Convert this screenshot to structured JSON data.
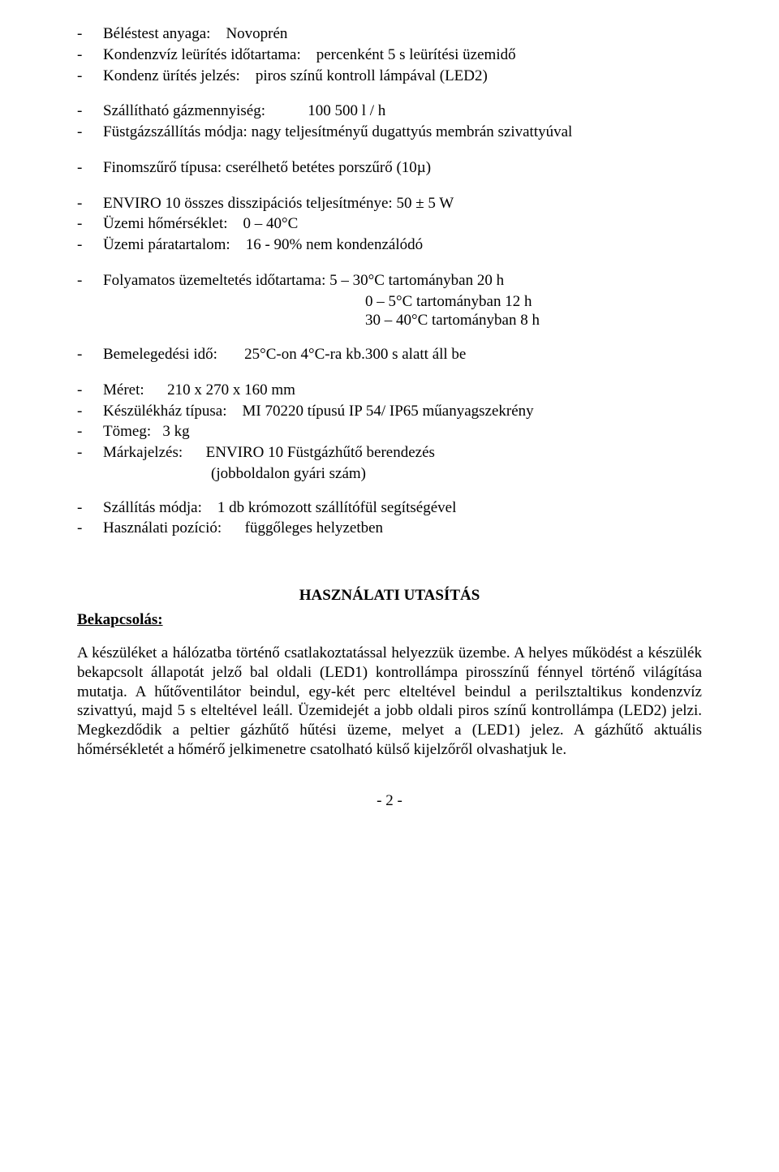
{
  "specs": {
    "group1": [
      {
        "label": "Béléstest anyaga:",
        "value": "Novoprén"
      },
      {
        "label": "Kondenzvíz leürítés időtartama:",
        "value": "percenként 5 s leürítési üzemidő"
      },
      {
        "label": "Kondenz ürítés jelzés:",
        "value": "piros színű kontroll lámpával (LED2)"
      }
    ],
    "group2": [
      {
        "label": "Szállítható gázmennyiség:",
        "value": "100 500 l / h"
      },
      {
        "label": "Füstgázszállítás módja:",
        "value": "nagy teljesítményű dugattyús membrán szivattyúval"
      }
    ],
    "group3": [
      {
        "label": "Finomszűrő típusa:",
        "value": "cserélhető betétes porszűrő (10µ)"
      }
    ],
    "group4": [
      {
        "label": "ENVIRO 10 összes disszipációs teljesítménye:",
        "value": "50 ± 5 W"
      },
      {
        "label": "Üzemi hőmérséklet:",
        "value": "0 – 40°C"
      },
      {
        "label": "Üzemi páratartalom:",
        "value": "16 - 90% nem kondenzálódó"
      }
    ],
    "group5": [
      {
        "label": "Folyamatos üzemeltetés időtartama:",
        "value": "5 – 30°C tartományban 20 h"
      }
    ],
    "group5_extra": [
      "0 – 5°C tartományban   12 h",
      "30 – 40°C tartományban 8 h"
    ],
    "group6": [
      {
        "label": "Bemelegedési idő:",
        "value": "25°C-on 4°C-ra kb.300 s alatt áll be"
      }
    ],
    "group7": [
      {
        "label": "Méret:",
        "value": "210 x 270 x 160 mm"
      },
      {
        "label": "Készülékház típusa:",
        "value": "MI 70220 típusú IP 54/ IP65 műanyagszekrény"
      },
      {
        "label": "Tömeg:",
        "value": "3 kg"
      },
      {
        "label": "Márkajelzés:",
        "value": "ENVIRO 10 Füstgázhűtő berendezés"
      }
    ],
    "group7_extra": "(jobboldalon gyári szám)",
    "group8": [
      {
        "label": "Szállítás módja:",
        "value": "1 db krómozott szállítófül segítségével"
      },
      {
        "label": "Használati pozíció:",
        "value": "függőleges helyzetben"
      }
    ]
  },
  "heading": "HASZNÁLATI UTASÍTÁS",
  "subheading": "Bekapcsolás:",
  "paragraph": "A készüléket a hálózatba történő csatlakoztatással helyezzük üzembe. A helyes működést a készülék bekapcsolt állapotát jelző bal oldali (LED1) kontrollámpa pirosszínű fénnyel történő világítása mutatja. A hűtőventilátor beindul, egy-két perc elteltével beindul a perilsztaltikus kondenzvíz szivattyú, majd 5 s elteltével leáll. Üzemidejét a jobb oldali piros színű kontrollámpa (LED2) jelzi. Megkezdődik a peltier gázhűtő hűtési üzeme, melyet a (LED1) jelez. A gázhűtő aktuális hőmérsékletét a hőmérő jelkimenetre csatolható külső kijelzőről olvashatjuk le.",
  "pagenum": "- 2 -",
  "dash": "-"
}
